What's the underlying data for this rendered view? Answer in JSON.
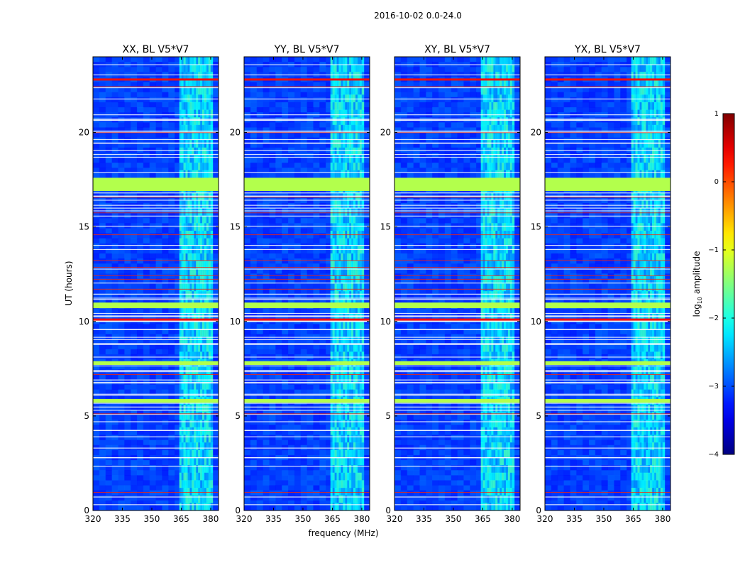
{
  "chart_data": {
    "type": "heatmap",
    "suptitle": "2016-10-02 0.0-24.0",
    "xlabel": "frequency (MHz)",
    "ylabel": "UT (hours)",
    "xlim": [
      320,
      384
    ],
    "ylim": [
      0,
      24
    ],
    "xticks": [
      320,
      335,
      350,
      365,
      380
    ],
    "yticks": [
      0,
      5,
      10,
      15,
      20
    ],
    "panels": [
      {
        "title": "XX, BL V5*V7"
      },
      {
        "title": "YY, BL V5*V7"
      },
      {
        "title": "XY, BL V5*V7"
      },
      {
        "title": "YX, BL V5*V7"
      }
    ],
    "colorbar": {
      "label": "log10 amplitude",
      "label_base": "log",
      "label_sub": "10",
      "label_rest": " amplitude",
      "range": [
        -4,
        1
      ],
      "ticks": [
        1,
        0,
        -1,
        -2,
        -3,
        -4
      ],
      "tick_labels": [
        "1",
        "0",
        "−1",
        "−2",
        "−3",
        "−4"
      ],
      "colormap": "jet"
    },
    "rfi_band_mhz": [
      364,
      381
    ],
    "flagged_blocks_hours": [
      [
        16.9,
        17.6
      ],
      [
        10.7,
        11.0
      ],
      [
        5.7,
        5.9
      ],
      [
        7.7,
        7.9
      ]
    ],
    "strong_rfi_lines_hours": [
      22.8,
      10.1
    ]
  }
}
